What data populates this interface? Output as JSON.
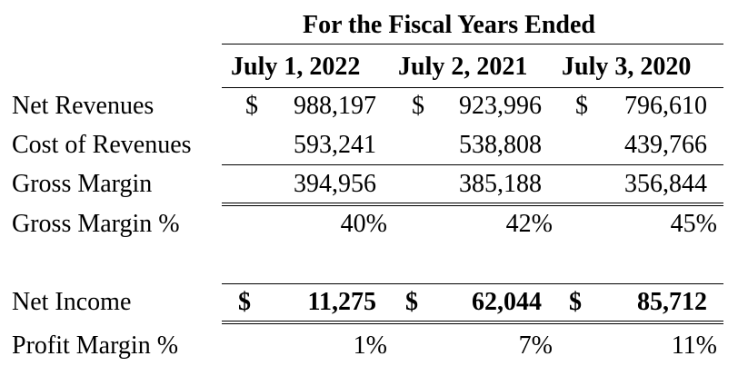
{
  "header": {
    "group_title": "For the Fiscal Years Ended",
    "columns": [
      "July 1, 2022",
      "July 2, 2021",
      "July 3, 2020"
    ]
  },
  "rows": [
    {
      "label": "Net Revenues",
      "values": [
        "$",
        "988,197",
        "$",
        "923,996",
        "$",
        "796,610"
      ]
    },
    {
      "label": "Cost of Revenues",
      "values": [
        "593,241",
        "538,808",
        "439,766"
      ]
    },
    {
      "label": "Gross Margin",
      "values": [
        "394,956",
        "385,188",
        "356,844"
      ]
    },
    {
      "label": "Gross Margin %",
      "values": [
        "40%",
        "42%",
        "45%"
      ]
    },
    {
      "label": "Net Income",
      "values": [
        "$",
        "11,275",
        "$",
        "62,044",
        "$",
        "85,712"
      ]
    },
    {
      "label": "Profit Margin %",
      "values": [
        "1%",
        "7%",
        "11%"
      ]
    }
  ]
}
